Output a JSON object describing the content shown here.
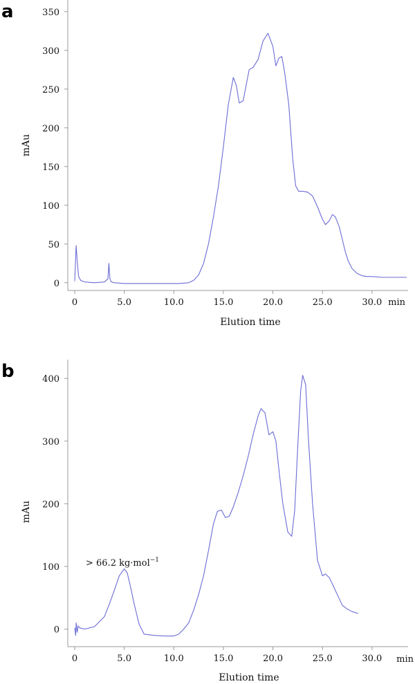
{
  "chart_data": [
    {
      "type": "line",
      "panel_label": "a",
      "xlabel": "Elution time",
      "x_unit": "min",
      "ylabel": "mAu",
      "xlim": [
        0,
        33.5
      ],
      "ylim": [
        -10,
        365
      ],
      "x_ticks": [
        "0",
        "5.0",
        "10.0",
        "15.0",
        "20.0",
        "25.0",
        "30.0"
      ],
      "x_tick_values": [
        0,
        5,
        10,
        15,
        20,
        25,
        30
      ],
      "y_ticks": [
        "0",
        "50",
        "100",
        "150",
        "200",
        "250",
        "300",
        "350"
      ],
      "y_tick_values": [
        0,
        50,
        100,
        150,
        200,
        250,
        300,
        350
      ],
      "line_color": "#6b6bd6",
      "series": [
        {
          "x": [
            0.0,
            0.15,
            0.25,
            0.4,
            0.6,
            1.0,
            2.0,
            3.0,
            3.35,
            3.45,
            3.55,
            3.7,
            4.0,
            5.0,
            7.0,
            9.0,
            10.5,
            11.5,
            12.0,
            12.5,
            13.0,
            13.5,
            14.0,
            14.5,
            15.0,
            15.5,
            16.0,
            16.3,
            16.6,
            17.0,
            17.3,
            17.6,
            18.0,
            18.5,
            19.0,
            19.5,
            20.0,
            20.3,
            20.6,
            20.9,
            21.2,
            21.6,
            22.0,
            22.3,
            22.6,
            23.0,
            23.5,
            24.0,
            24.5,
            25.0,
            25.3,
            25.7,
            26.0,
            26.3,
            26.7,
            27.0,
            27.3,
            27.6,
            28.0,
            28.5,
            29.0,
            29.5,
            30.0,
            31.0,
            32.0,
            33.5
          ],
          "y": [
            2,
            48,
            28,
            8,
            3,
            1,
            0,
            1,
            5,
            25,
            5,
            1,
            0,
            -1,
            -1,
            -1,
            -1,
            0,
            3,
            10,
            25,
            50,
            85,
            125,
            175,
            230,
            265,
            255,
            232,
            235,
            255,
            275,
            278,
            288,
            312,
            322,
            305,
            280,
            290,
            292,
            270,
            230,
            160,
            125,
            118,
            118,
            117,
            112,
            98,
            82,
            75,
            80,
            88,
            85,
            72,
            56,
            40,
            28,
            18,
            12,
            9,
            8,
            8,
            7,
            7,
            7
          ]
        }
      ]
    },
    {
      "type": "line",
      "panel_label": "b",
      "xlabel": "Elution time",
      "x_unit": "min",
      "ylabel": "mAu",
      "xlim": [
        0,
        33.5
      ],
      "ylim": [
        -28,
        430
      ],
      "x_ticks": [
        "0",
        "5.0",
        "10.0",
        "15.0",
        "20.0",
        "25.0",
        "30.0"
      ],
      "x_tick_values": [
        0,
        5,
        10,
        15,
        20,
        25,
        30
      ],
      "y_ticks": [
        "0",
        "100",
        "200",
        "300",
        "400"
      ],
      "y_tick_values": [
        0,
        100,
        200,
        300,
        400
      ],
      "line_color": "#6b6bd6",
      "annotation": "> 66.2 kg·mol",
      "annotation_superscript": "−1",
      "series": [
        {
          "x": [
            0.0,
            0.1,
            0.15,
            0.25,
            0.35,
            0.5,
            1.0,
            2.0,
            3.0,
            3.5,
            4.0,
            4.5,
            5.0,
            5.3,
            5.6,
            6.0,
            6.5,
            7.0,
            8.0,
            9.0,
            10.0,
            10.5,
            11.0,
            11.5,
            12.0,
            12.5,
            13.0,
            13.5,
            14.0,
            14.4,
            14.8,
            15.2,
            15.6,
            16.0,
            16.5,
            17.0,
            17.5,
            18.0,
            18.5,
            18.8,
            19.2,
            19.6,
            20.0,
            20.3,
            20.6,
            21.0,
            21.5,
            21.9,
            22.2,
            22.5,
            22.8,
            23.0,
            23.3,
            23.6,
            24.0,
            24.5,
            25.0,
            25.3,
            25.7,
            26.0,
            26.5,
            27.0,
            27.5,
            28.0,
            28.6
          ],
          "y": [
            2,
            -10,
            10,
            -5,
            5,
            2,
            0,
            4,
            20,
            40,
            62,
            85,
            96,
            90,
            70,
            40,
            8,
            -8,
            -10,
            -11,
            -11,
            -8,
            0,
            10,
            30,
            55,
            85,
            125,
            168,
            188,
            190,
            178,
            180,
            195,
            218,
            245,
            275,
            310,
            340,
            352,
            345,
            310,
            315,
            300,
            255,
            200,
            155,
            148,
            190,
            290,
            380,
            405,
            390,
            300,
            200,
            110,
            85,
            88,
            82,
            72,
            55,
            38,
            32,
            28,
            25
          ]
        }
      ]
    }
  ]
}
